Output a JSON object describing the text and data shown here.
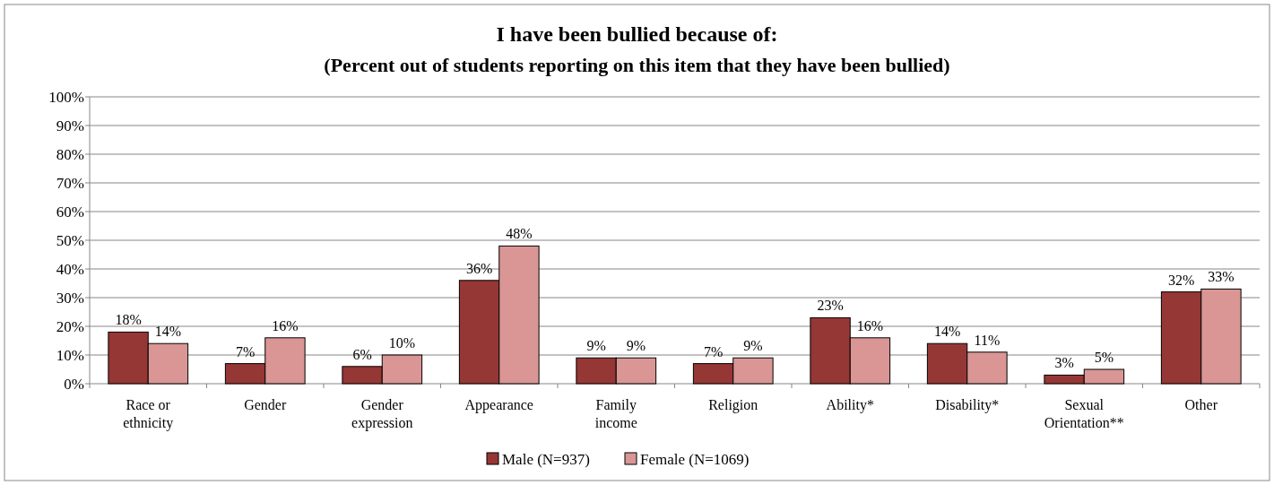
{
  "chart_data": {
    "type": "bar",
    "title": "I have been bullied because of:",
    "subtitle": "(Percent out of students reporting on this item that they have been bullied)",
    "categories": [
      "Race or ethnicity",
      "Gender",
      "Gender expression",
      "Appearance",
      "Family income",
      "Religion",
      "Ability*",
      "Disability*",
      "Sexual Orientation**",
      "Other"
    ],
    "series": [
      {
        "name": "Male (N=937)",
        "color": "#953735",
        "values": [
          18,
          7,
          6,
          36,
          9,
          7,
          23,
          14,
          3,
          32
        ],
        "value_labels": [
          "18%",
          "7%",
          "6%",
          "36%",
          "9%",
          "7%",
          "23%",
          "14%",
          "3%",
          "32%"
        ]
      },
      {
        "name": "Female (N=1069)",
        "color": "#d99694",
        "values": [
          14,
          16,
          10,
          48,
          9,
          9,
          16,
          11,
          5,
          33
        ],
        "value_labels": [
          "14%",
          "16%",
          "10%",
          "48%",
          "9%",
          "9%",
          "16%",
          "11%",
          "5%",
          "33%"
        ]
      }
    ],
    "ylim": [
      0,
      100
    ],
    "yticks": [
      {
        "value": 0,
        "label": "0%"
      },
      {
        "value": 10,
        "label": "10%"
      },
      {
        "value": 20,
        "label": "20%"
      },
      {
        "value": 30,
        "label": "30%"
      },
      {
        "value": 40,
        "label": "40%"
      },
      {
        "value": 50,
        "label": "50%"
      },
      {
        "value": 60,
        "label": "60%"
      },
      {
        "value": 70,
        "label": "70%"
      },
      {
        "value": 80,
        "label": "80%"
      },
      {
        "value": 90,
        "label": "90%"
      },
      {
        "value": 100,
        "label": "100%"
      }
    ],
    "grid": "y",
    "legend": "bottom"
  }
}
